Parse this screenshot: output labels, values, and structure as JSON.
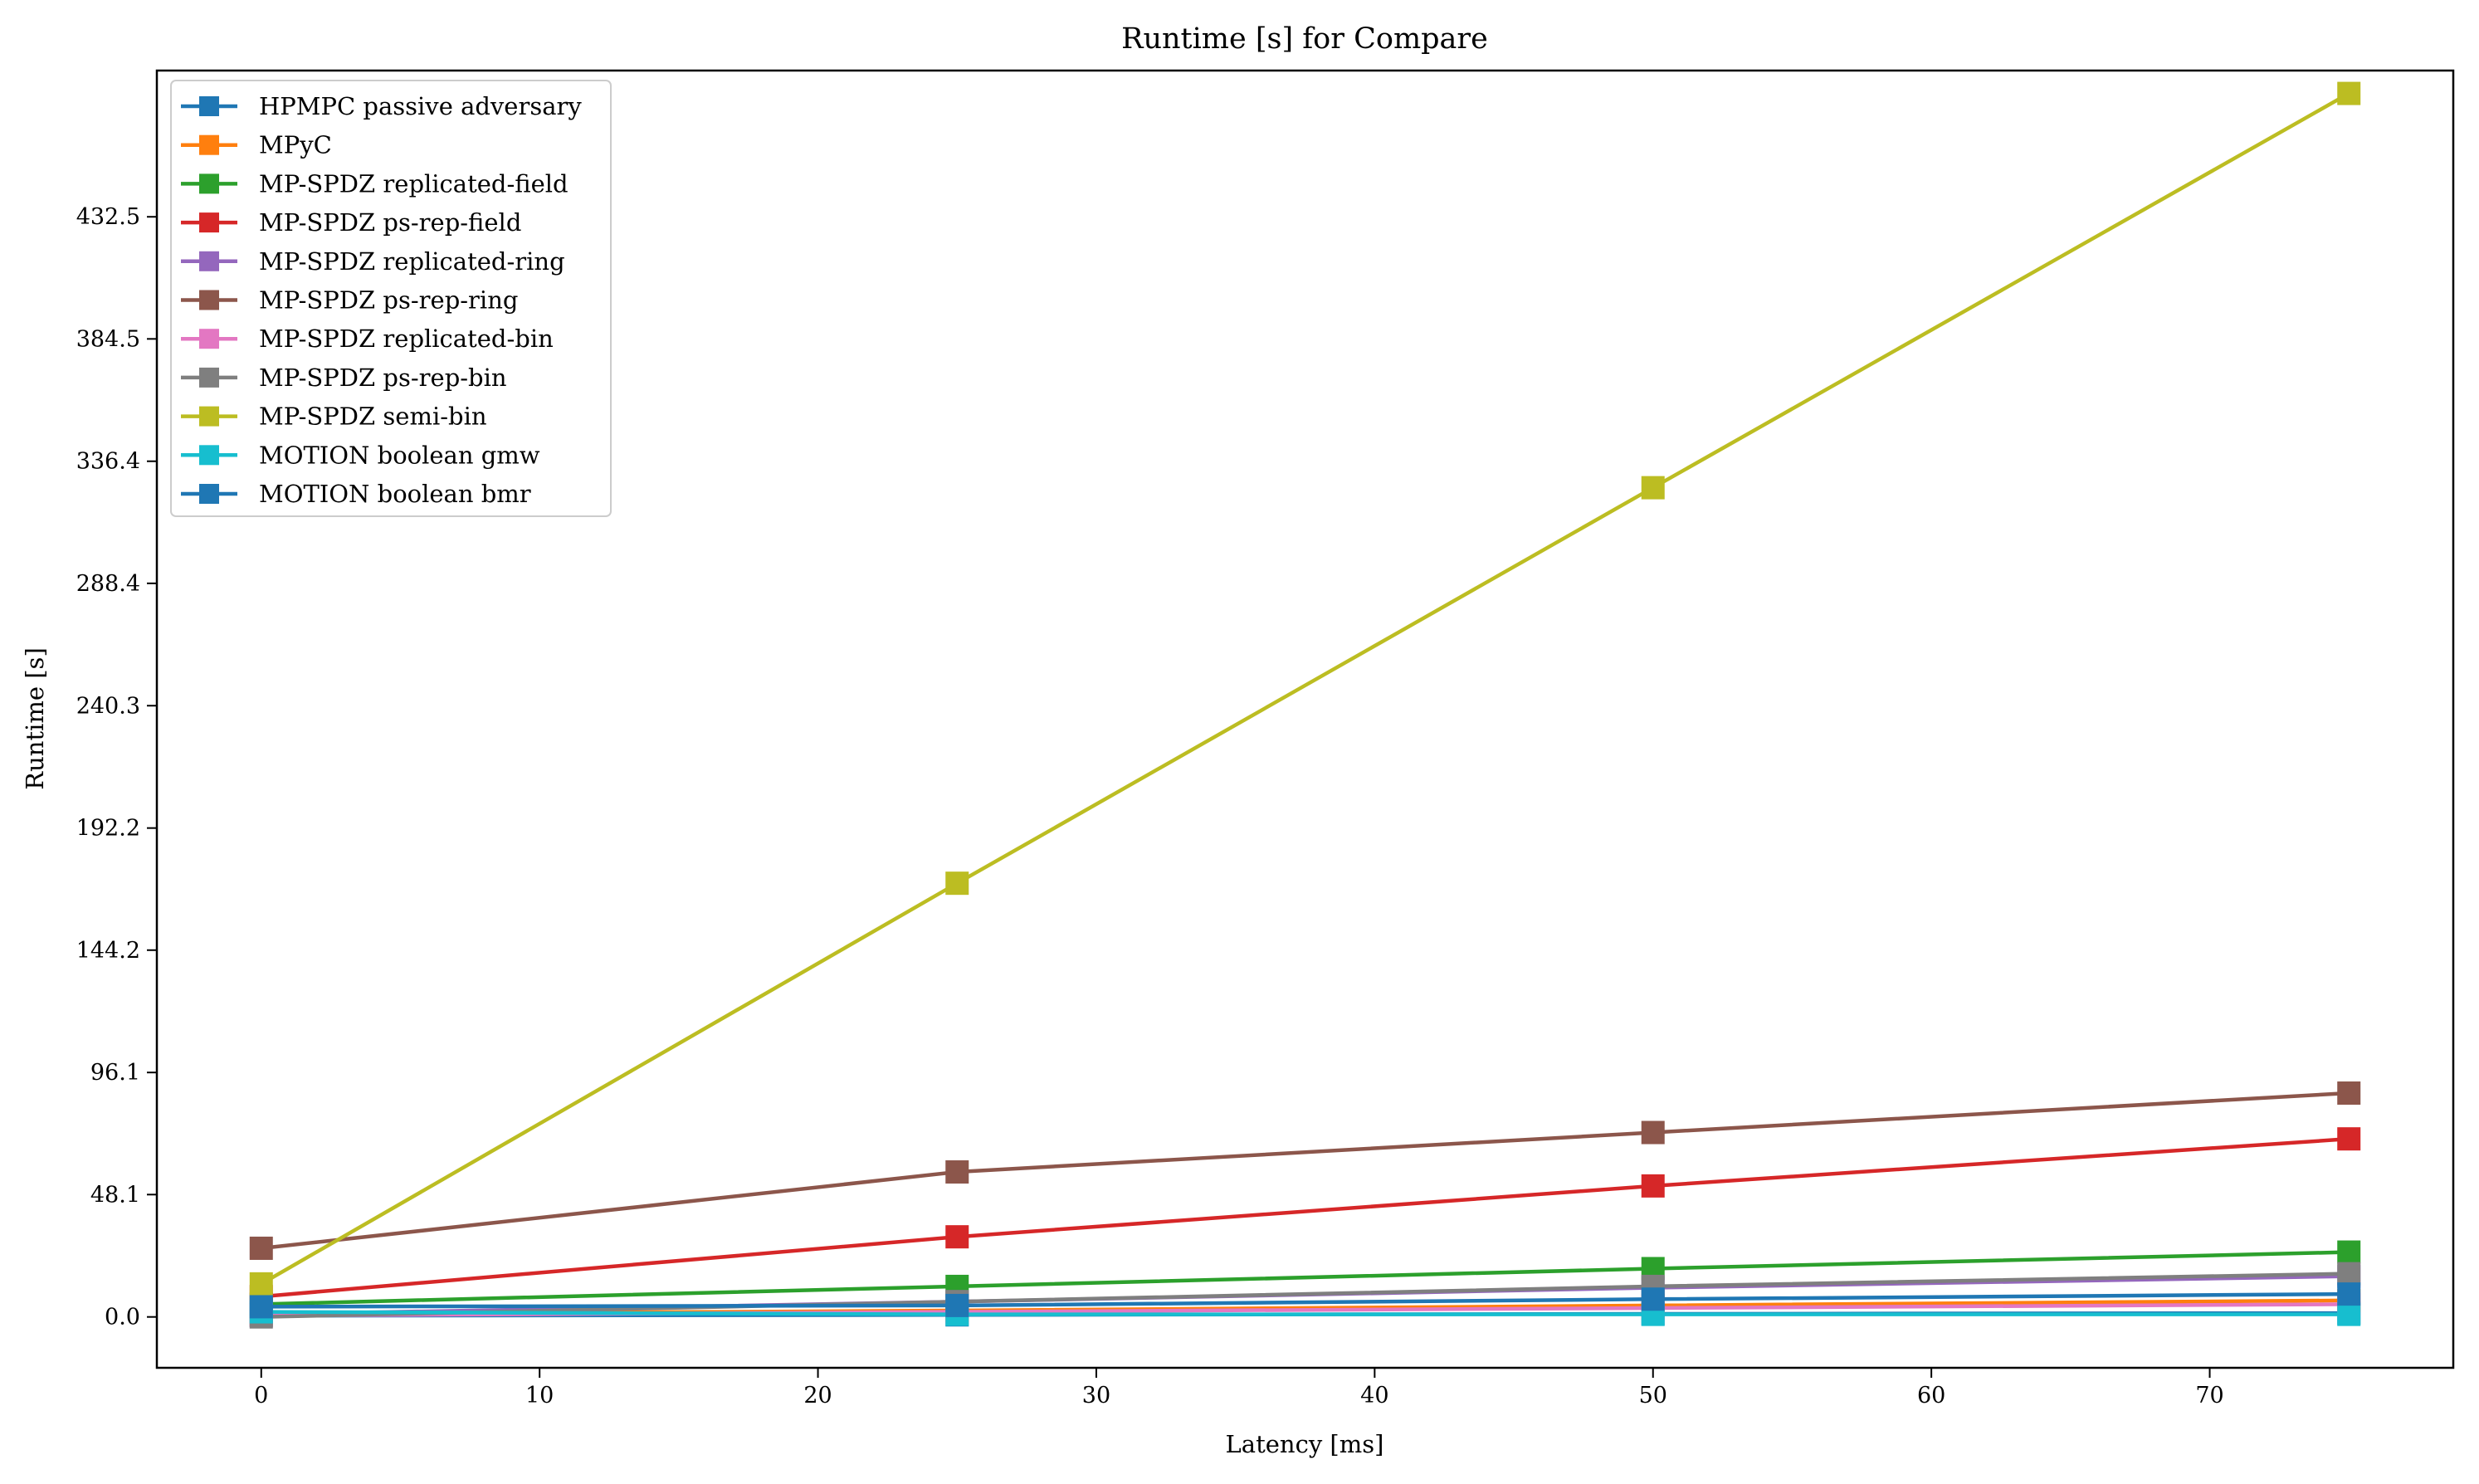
{
  "chart_data": {
    "type": "line",
    "title": "Runtime [s] for Compare",
    "xlabel": "Latency [ms]",
    "ylabel": "Runtime [s]",
    "x": [
      0,
      25,
      50,
      75
    ],
    "xlim": [
      -3.75,
      78.75
    ],
    "ylim": [
      -20,
      490
    ],
    "xticks": [
      0,
      10,
      20,
      30,
      40,
      50,
      60,
      70
    ],
    "yticks": [
      "0.0",
      "48.1",
      "96.1",
      "144.2",
      "192.2",
      "240.3",
      "288.4",
      "336.4",
      "384.5",
      "432.5"
    ],
    "grid": false,
    "legend_position": "upper left",
    "marker": "square",
    "series": [
      {
        "name": "HPMPC passive adversary",
        "color": "#1f77b4",
        "values": [
          0.5,
          0.8,
          1.2,
          1.5
        ]
      },
      {
        "name": "MPyC",
        "color": "#ff7f0e",
        "values": [
          1.0,
          2.5,
          4.5,
          6.5
        ]
      },
      {
        "name": "MP-SPDZ replicated-field",
        "color": "#2ca02c",
        "values": [
          5.0,
          12.0,
          19.0,
          25.5
        ]
      },
      {
        "name": "MP-SPDZ ps-rep-field",
        "color": "#d62728",
        "values": [
          8.0,
          31.5,
          51.5,
          70.0
        ]
      },
      {
        "name": "MP-SPDZ replicated-ring",
        "color": "#9467bd",
        "values": [
          1.0,
          6.0,
          11.5,
          16.0
        ]
      },
      {
        "name": "MP-SPDZ ps-rep-ring",
        "color": "#8c564b",
        "values": [
          27.0,
          57.0,
          72.5,
          88.0
        ]
      },
      {
        "name": "MP-SPDZ replicated-bin",
        "color": "#e377c2",
        "values": [
          0.5,
          2.0,
          3.5,
          5.0
        ]
      },
      {
        "name": "MP-SPDZ ps-rep-bin",
        "color": "#7f7f7f",
        "values": [
          0.0,
          6.0,
          12.0,
          17.0
        ]
      },
      {
        "name": "MP-SPDZ semi-bin",
        "color": "#bcbd22",
        "values": [
          13.0,
          170.5,
          326.0,
          481.0
        ]
      },
      {
        "name": "MOTION boolean gmw",
        "color": "#17becf",
        "values": [
          2.0,
          1.0,
          1.0,
          1.0
        ]
      },
      {
        "name": "MOTION boolean bmr",
        "color": "#1f77b4",
        "values": [
          4.0,
          4.5,
          7.0,
          9.0
        ]
      }
    ]
  }
}
